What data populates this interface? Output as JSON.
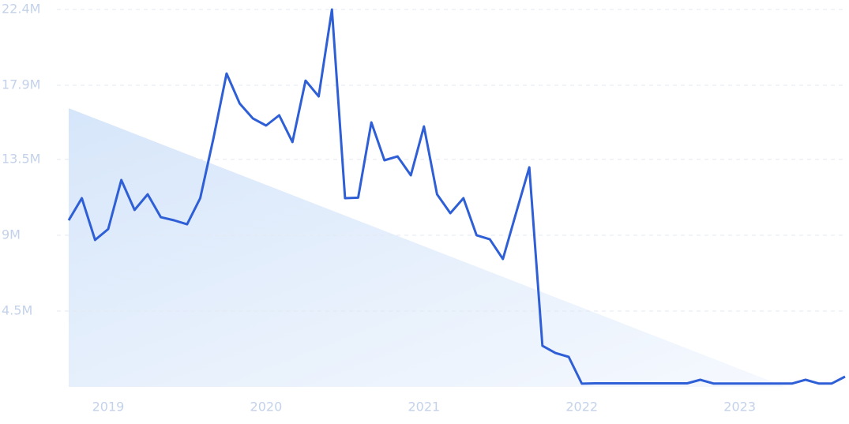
{
  "chart_data": {
    "type": "line",
    "x": [
      2018.75,
      2018.833,
      2018.917,
      2019,
      2019.083,
      2019.167,
      2019.25,
      2019.333,
      2019.417,
      2019.5,
      2019.583,
      2019.667,
      2019.75,
      2019.833,
      2019.917,
      2020,
      2020.083,
      2020.167,
      2020.25,
      2020.333,
      2020.417,
      2020.5,
      2020.583,
      2020.667,
      2020.75,
      2020.833,
      2020.917,
      2021,
      2021.083,
      2021.167,
      2021.25,
      2021.333,
      2021.417,
      2021.5,
      2021.583,
      2021.667,
      2021.75,
      2021.833,
      2021.917,
      2022,
      2022.083,
      2022.167,
      2022.25,
      2022.333,
      2022.417,
      2022.5,
      2022.583,
      2022.667,
      2022.75,
      2022.833,
      2022.917,
      2023,
      2023.083,
      2023.167,
      2023.25,
      2023.333,
      2023.417,
      2023.5,
      2023.583,
      2023.667
    ],
    "series": [
      {
        "color": "#2f5fd6",
        "values": [
          9890000,
          11200000,
          8720000,
          9370000,
          12280000,
          10500000,
          11430000,
          10070000,
          9890000,
          9650000,
          11200000,
          14760000,
          18600000,
          16820000,
          15930000,
          15510000,
          16120000,
          14530000,
          18180000,
          17240000,
          22400000,
          11200000,
          11230000,
          15700000,
          13450000,
          13680000,
          12560000,
          15460000,
          11430000,
          10310000,
          11200000,
          9000000,
          8760000,
          7590000,
          10310000,
          13030000,
          2440000,
          2010000,
          1780000,
          190000,
          210000,
          210000,
          210000,
          210000,
          210000,
          210000,
          210000,
          210000,
          420000,
          200000,
          200000,
          200000,
          200000,
          200000,
          200000,
          200000,
          420000,
          200000,
          200000,
          610000
        ]
      }
    ],
    "xlim": [
      2018.75,
      2023.667
    ],
    "xticks": [
      2019,
      2020,
      2021,
      2022,
      2023
    ],
    "ylim": [
      0,
      22400000
    ],
    "yticks": [
      {
        "value": 4500000,
        "label": "4.5M"
      },
      {
        "value": 9000000,
        "label": "9M"
      },
      {
        "value": 13500000,
        "label": "13.5M"
      },
      {
        "value": 17900000,
        "label": "17.9M"
      },
      {
        "value": 22400000,
        "label": "22.4M"
      }
    ],
    "grid": true
  }
}
